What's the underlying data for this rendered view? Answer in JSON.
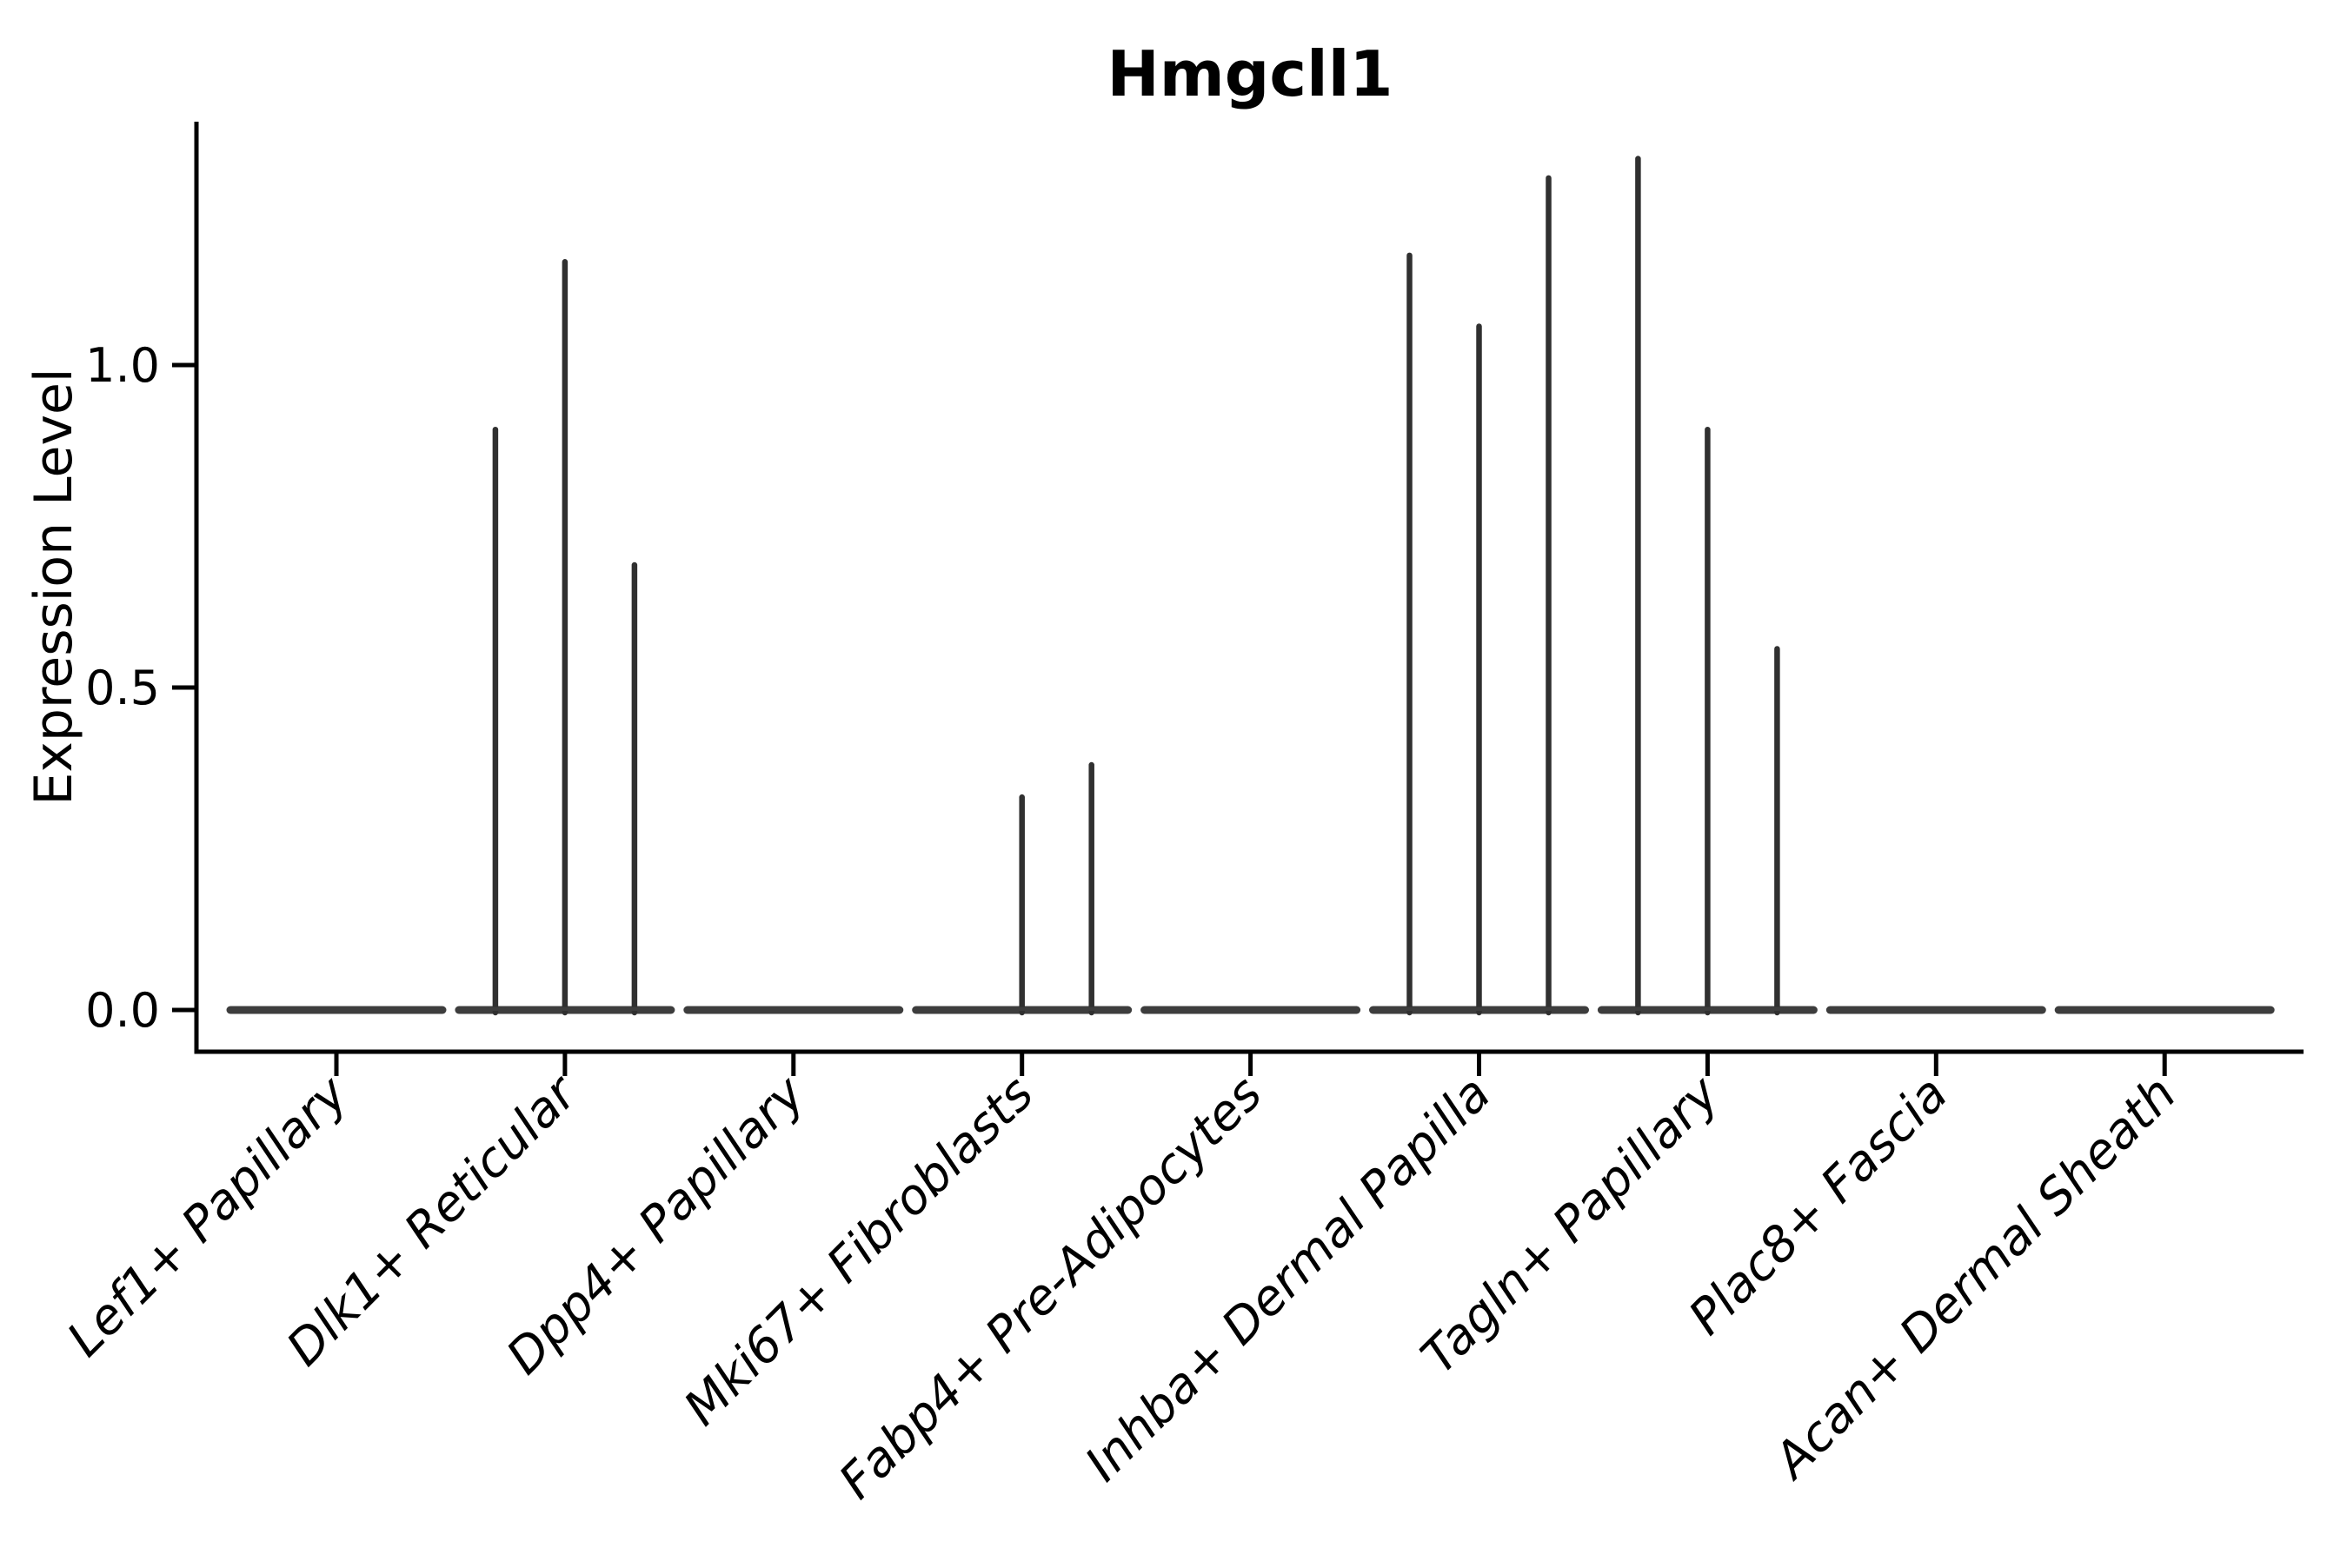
{
  "title": "Hmgcll1",
  "chart_data": {
    "type": "violin",
    "title": "Hmgcll1",
    "xlabel": "",
    "ylabel": "Expression Level",
    "yticks": [
      {
        "value": 0.0,
        "label": "0.0"
      },
      {
        "value": 0.5,
        "label": "0.5"
      },
      {
        "value": 1.0,
        "label": "1.0"
      }
    ],
    "ylim": [
      -0.07,
      1.38
    ],
    "grid": false,
    "legend": "none",
    "categories": [
      "Lef1+ Papillary",
      "Dlk1+ Reticular",
      "Dpp4+ Papillary",
      "Mki67+ Fibroblasts",
      "Fabp4+ Pre-Adipocytes",
      "Inhba+ Dermal Papilla",
      "Tagln+ Papillary",
      "Plac8+ Fascia",
      "Acan+ Dermal Sheath"
    ],
    "violins": [
      {
        "category": "Lef1+ Papillary",
        "baseline_value": 0.0,
        "spikes": []
      },
      {
        "category": "Dlk1+ Reticular",
        "baseline_value": 0.0,
        "spikes": [
          {
            "subpos": -1,
            "value": 0.9
          },
          {
            "subpos": 0,
            "value": 1.16
          },
          {
            "subpos": 1,
            "value": 0.69
          }
        ]
      },
      {
        "category": "Dpp4+ Papillary",
        "baseline_value": 0.0,
        "spikes": []
      },
      {
        "category": "Mki67+ Fibroblasts",
        "baseline_value": 0.0,
        "spikes": [
          {
            "subpos": 0,
            "value": 0.33
          },
          {
            "subpos": 1,
            "value": 0.38
          }
        ]
      },
      {
        "category": "Fabp4+ Pre-Adipocytes",
        "baseline_value": 0.0,
        "spikes": []
      },
      {
        "category": "Inhba+ Dermal Papilla",
        "baseline_value": 0.0,
        "spikes": [
          {
            "subpos": -1,
            "value": 1.17
          },
          {
            "subpos": 0,
            "value": 1.06
          },
          {
            "subpos": 1,
            "value": 1.29
          }
        ]
      },
      {
        "category": "Tagln+ Papillary",
        "baseline_value": 0.0,
        "spikes": [
          {
            "subpos": -1,
            "value": 1.32
          },
          {
            "subpos": 0,
            "value": 0.9
          },
          {
            "subpos": 1,
            "value": 0.56
          }
        ]
      },
      {
        "category": "Plac8+ Fascia",
        "baseline_value": 0.0,
        "spikes": []
      },
      {
        "category": "Acan+ Dermal Sheath",
        "baseline_value": 0.0,
        "spikes": []
      }
    ],
    "colors": {
      "violin_stroke": "#303030",
      "baseline_stroke": "#3d3d3d",
      "axis": "#000000",
      "text": "#000000",
      "background": "#ffffff"
    }
  }
}
